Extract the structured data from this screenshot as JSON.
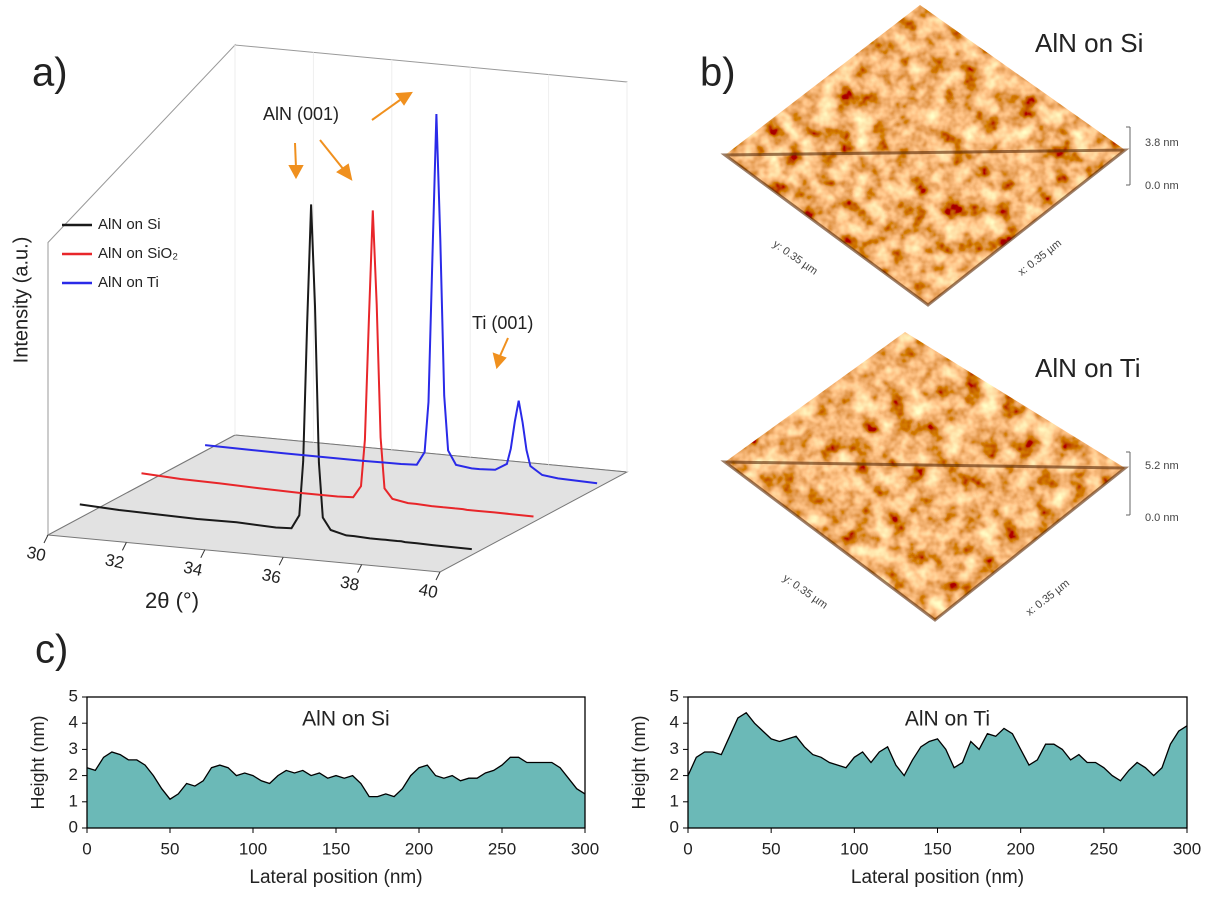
{
  "panel_labels": [
    "a)",
    "b)",
    "c)"
  ],
  "chart_data": [
    {
      "type": "line3d",
      "xlabel": "2θ (°)",
      "ylabel": "Intensity (a.u.)",
      "xlim": [
        30,
        40
      ],
      "xticks": [
        30,
        32,
        34,
        36,
        38,
        40
      ],
      "ylim": [
        0,
        100
      ],
      "legend": "upper left",
      "annotations": [
        "AlN (001)",
        "Ti (001)"
      ],
      "x": [
        30,
        31,
        32,
        33,
        34,
        35,
        35.4,
        35.6,
        35.7,
        35.8,
        35.9,
        36.0,
        36.1,
        36.2,
        36.4,
        36.8,
        37,
        37.4,
        37.7,
        37.8,
        37.9,
        38.0,
        38.1,
        38.2,
        38.3,
        38.6,
        39,
        40
      ],
      "series": [
        {
          "name": "AlN on Si",
          "color": "#1a1a1a",
          "values": [
            3.5,
            3,
            2.8,
            2.6,
            2.7,
            2.3,
            2.5,
            6,
            20,
            55,
            86,
            60,
            20,
            6,
            3,
            2,
            2,
            1.8,
            1.8,
            1.8,
            1.8,
            1.8,
            1.8,
            1.8,
            1.7,
            1.7,
            1.6,
            1.5
          ]
        },
        {
          "name": "AlN on SiO₂",
          "color": "#e8262a",
          "values": [
            3,
            2.5,
            2.3,
            2,
            1.8,
            1.8,
            2,
            5,
            17,
            48,
            76,
            52,
            18,
            5,
            2.5,
            1.8,
            1.8,
            1.6,
            1.6,
            1.6,
            1.6,
            1.6,
            1.6,
            1.6,
            1.5,
            1.5,
            1.5,
            1.4
          ]
        },
        {
          "name": "AlN on Ti",
          "color": "#2a2ae8",
          "values": [
            1.5,
            1.4,
            1.3,
            1.3,
            1.3,
            1.4,
            1.6,
            5,
            18,
            55,
            92,
            60,
            20,
            6,
            2.5,
            2,
            2,
            2.2,
            4,
            8,
            15,
            20.5,
            15,
            8,
            4,
            2,
            1.5,
            1.2
          ]
        }
      ]
    },
    {
      "type": "area",
      "title": "AlN on Si",
      "xlabel": "Lateral position (nm)",
      "ylabel": "Height (nm)",
      "xlim": [
        0,
        300
      ],
      "xticks": [
        0,
        50,
        100,
        150,
        200,
        250,
        300
      ],
      "ylim": [
        0,
        5
      ],
      "yticks": [
        0,
        1,
        2,
        3,
        4,
        5
      ],
      "color": "#6bb9b7",
      "x": [
        0,
        5,
        10,
        15,
        20,
        25,
        30,
        35,
        40,
        45,
        50,
        55,
        60,
        65,
        70,
        75,
        80,
        85,
        90,
        95,
        100,
        105,
        110,
        115,
        120,
        125,
        130,
        135,
        140,
        145,
        150,
        155,
        160,
        165,
        170,
        175,
        180,
        185,
        190,
        195,
        200,
        205,
        210,
        215,
        220,
        225,
        230,
        235,
        240,
        245,
        250,
        255,
        260,
        265,
        270,
        275,
        280,
        285,
        290,
        295,
        300
      ],
      "values": [
        2.3,
        2.2,
        2.7,
        2.9,
        2.8,
        2.6,
        2.6,
        2.4,
        2.0,
        1.5,
        1.1,
        1.3,
        1.7,
        1.6,
        1.8,
        2.3,
        2.4,
        2.3,
        2.0,
        2.1,
        2.0,
        1.8,
        1.7,
        2.0,
        2.2,
        2.1,
        2.2,
        2.0,
        2.1,
        1.9,
        2.0,
        1.9,
        2.0,
        1.7,
        1.2,
        1.2,
        1.3,
        1.2,
        1.5,
        2.0,
        2.3,
        2.4,
        2.0,
        1.9,
        2.0,
        1.8,
        1.9,
        1.9,
        2.1,
        2.2,
        2.4,
        2.7,
        2.7,
        2.5,
        2.5,
        2.5,
        2.5,
        2.3,
        1.9,
        1.5,
        1.3
      ]
    },
    {
      "type": "area",
      "title": "AlN on Ti",
      "xlabel": "Lateral position (nm)",
      "ylabel": "Height (nm)",
      "xlim": [
        0,
        300
      ],
      "xticks": [
        0,
        50,
        100,
        150,
        200,
        250,
        300
      ],
      "ylim": [
        0,
        5
      ],
      "yticks": [
        0,
        1,
        2,
        3,
        4,
        5
      ],
      "color": "#6bb9b7",
      "x": [
        0,
        5,
        10,
        15,
        20,
        25,
        30,
        35,
        40,
        45,
        50,
        55,
        60,
        65,
        70,
        75,
        80,
        85,
        90,
        95,
        100,
        105,
        110,
        115,
        120,
        125,
        130,
        135,
        140,
        145,
        150,
        155,
        160,
        165,
        170,
        175,
        180,
        185,
        190,
        195,
        200,
        205,
        210,
        215,
        220,
        225,
        230,
        235,
        240,
        245,
        250,
        255,
        260,
        265,
        270,
        275,
        280,
        285,
        290,
        295,
        300
      ],
      "values": [
        2.0,
        2.7,
        2.9,
        2.9,
        2.8,
        3.5,
        4.2,
        4.4,
        4.0,
        3.7,
        3.4,
        3.3,
        3.4,
        3.5,
        3.1,
        2.8,
        2.7,
        2.5,
        2.4,
        2.3,
        2.7,
        2.9,
        2.5,
        2.9,
        3.1,
        2.4,
        2.0,
        2.6,
        3.1,
        3.3,
        3.4,
        3.0,
        2.3,
        2.5,
        3.3,
        3.0,
        3.6,
        3.5,
        3.8,
        3.6,
        3.0,
        2.4,
        2.6,
        3.2,
        3.2,
        3.0,
        2.6,
        2.8,
        2.5,
        2.5,
        2.3,
        2.0,
        1.8,
        2.2,
        2.5,
        2.3,
        2.0,
        2.3,
        3.2,
        3.7,
        3.9
      ]
    }
  ],
  "afm_images": [
    {
      "title": "AlN on Si",
      "scale_top": "3.8 nm",
      "scale_bottom": "0.0 nm",
      "y_label": "y: 0.35 µm",
      "x_label": "x: 0.35 µm"
    },
    {
      "title": "AlN on Ti",
      "scale_top": "5.2 nm",
      "scale_bottom": "0.0 nm",
      "y_label": "y: 0.35 µm",
      "x_label": "x: 0.35 µm"
    }
  ]
}
